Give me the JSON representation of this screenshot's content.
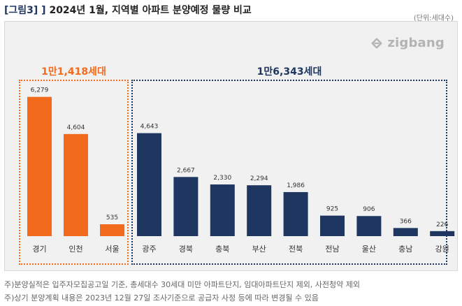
{
  "title": {
    "prefix": "[그림3] ]",
    "text": "2024년 1월, 지역별 아파트 분양예정 물량 비교"
  },
  "unit": "(단위:세대수)",
  "logo": {
    "text": "zigbang",
    "icon": "zigbang-logo-icon"
  },
  "colors": {
    "capital": "#f26b1d",
    "regional": "#1f3660",
    "panel": "#f1f1f1"
  },
  "chart_data": {
    "type": "bar",
    "title": "2024년 1월, 지역별 아파트 분양예정 물량 비교",
    "ylabel": "",
    "unit": "(단위:세대수)",
    "ylim": [
      0,
      7000
    ],
    "categories": [
      "경기",
      "인천",
      "서울",
      "광주",
      "경북",
      "충북",
      "부산",
      "전북",
      "전남",
      "울산",
      "충남",
      "강원"
    ],
    "values": [
      6279,
      4604,
      535,
      4643,
      2667,
      2330,
      2294,
      1986,
      925,
      906,
      366,
      226
    ],
    "value_labels": [
      "6,279",
      "4,604",
      "535",
      "4,643",
      "2,667",
      "2,330",
      "2,294",
      "1,986",
      "925",
      "906",
      "366",
      "226"
    ],
    "groups": [
      {
        "label": "1만1,418세대",
        "count": 3,
        "color": "#f26b1d"
      },
      {
        "label": "1만6,343세대",
        "count": 9,
        "color": "#1f3660"
      }
    ],
    "grid": false,
    "legend": "none"
  },
  "notes": [
    "주)분양실적은 입주자모집공고일 기준, 총세대수 30세대 미만 아파트단지, 임대아파트단지 제외, 사전청약 제외",
    "주)상기 분양계획 내용은 2023년 12월 27일 조사기준으로 공급자 사정 등에 따라 변경될 수 있음"
  ]
}
